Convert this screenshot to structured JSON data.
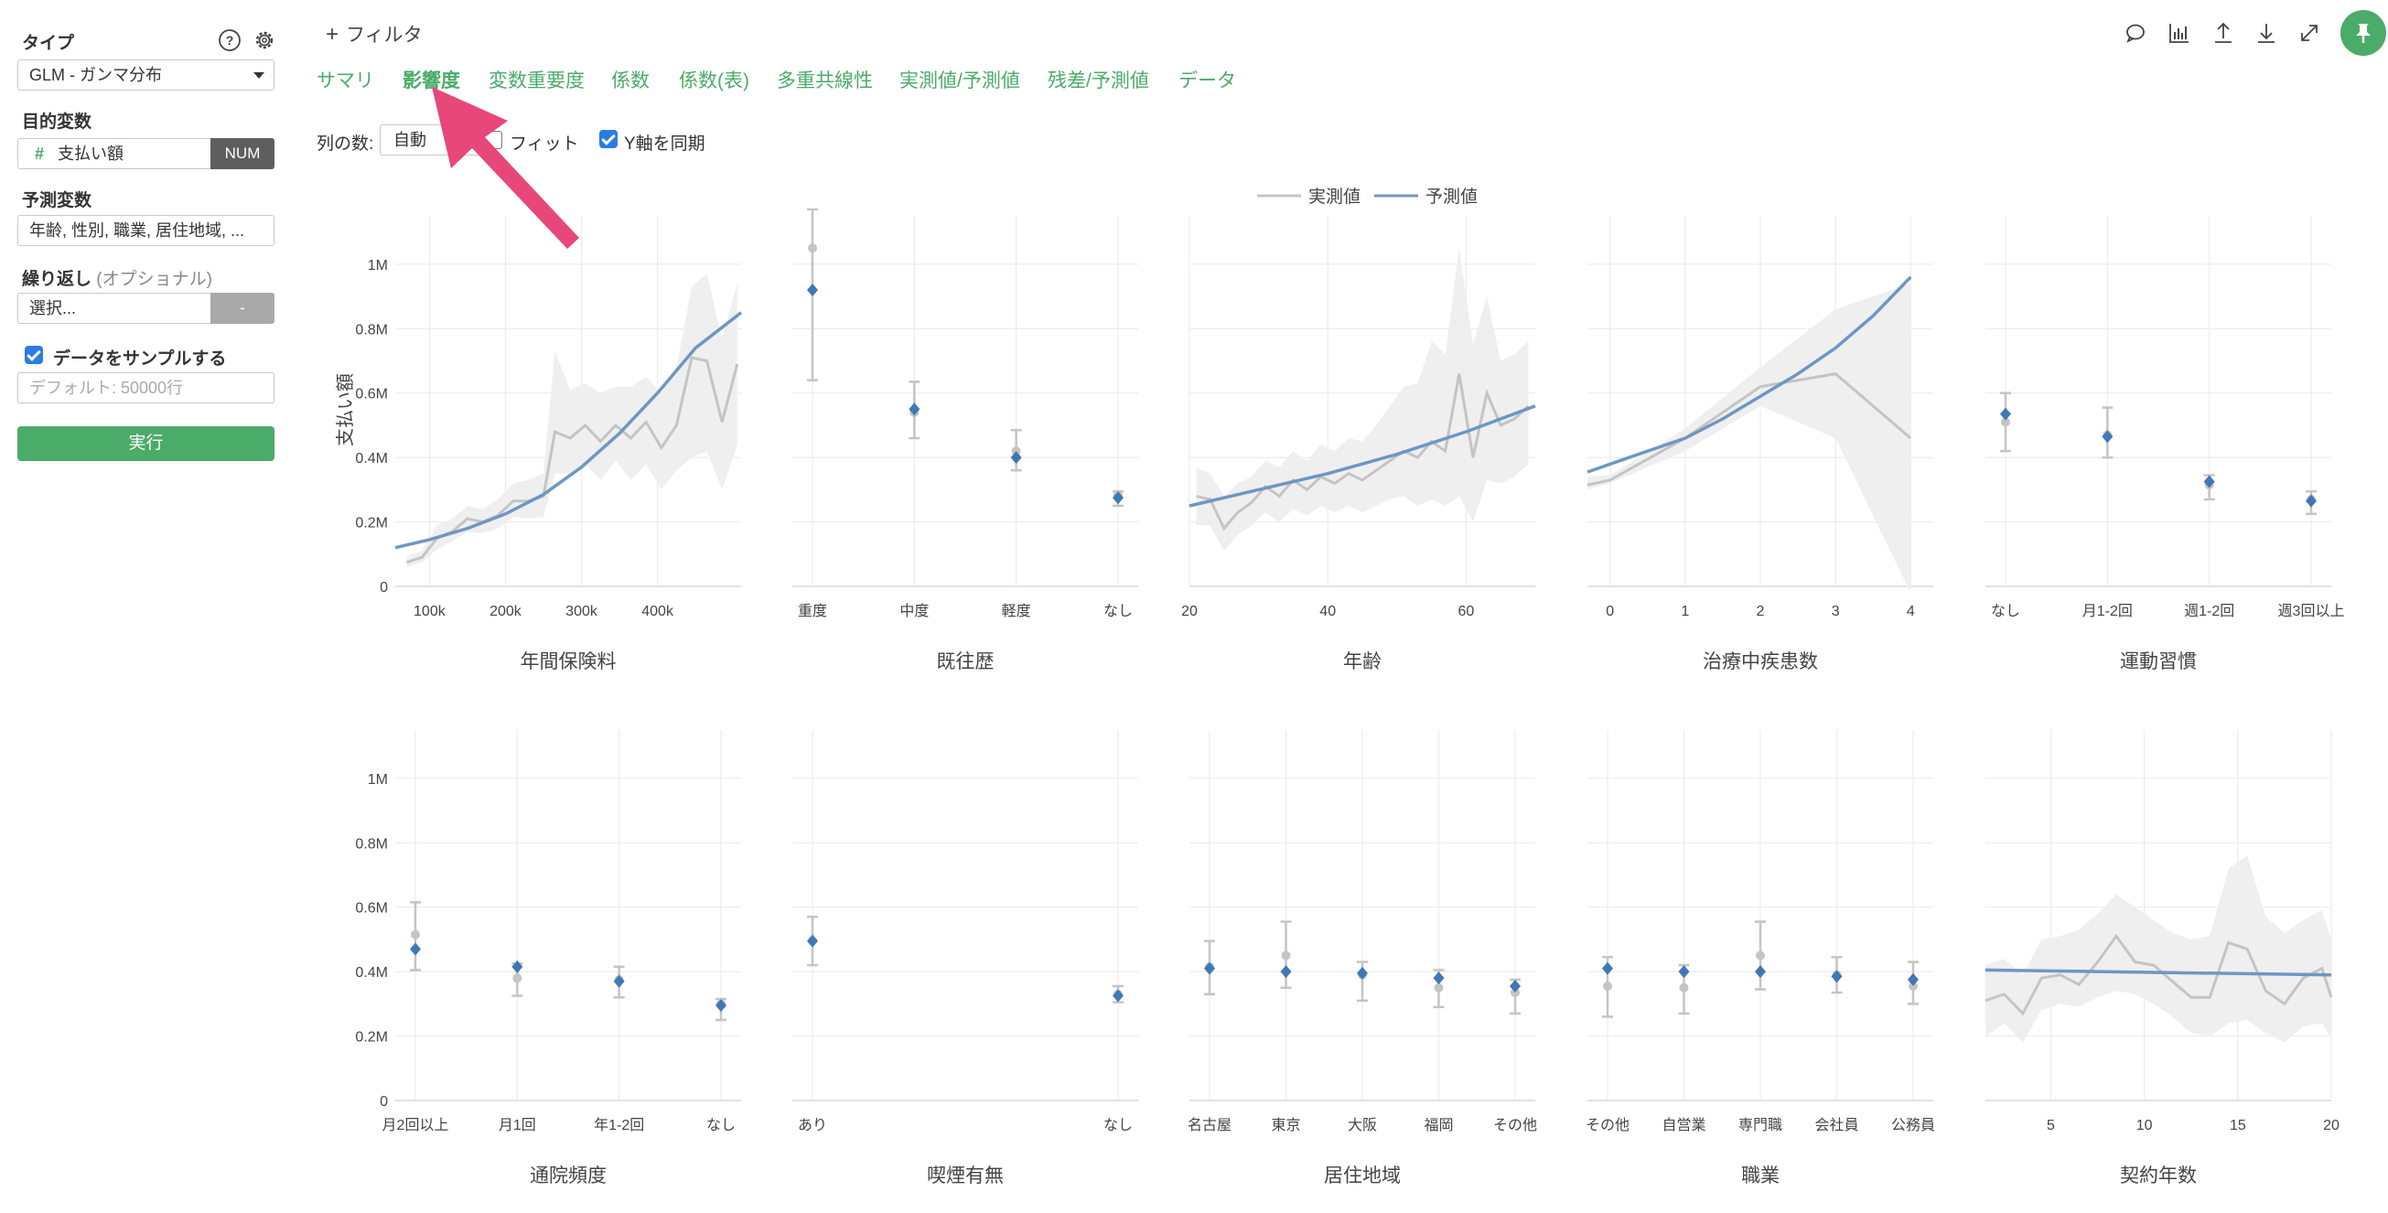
{
  "sidebar": {
    "type_label": "タイプ",
    "type_value": "GLM - ガンマ分布",
    "target_label": "目的変数",
    "target_value": "支払い額",
    "target_badge": "NUM",
    "predictor_label": "予測変数",
    "predictor_value": "年齢, 性別, 職業, 居住地域, ...",
    "repeat_label": "繰り返し",
    "repeat_optional": "(オプショナル)",
    "repeat_value": "選択...",
    "repeat_button": "-",
    "sample_label": "データをサンプルする",
    "sample_placeholder": "デフォルト: 50000行",
    "run_button": "実行"
  },
  "header": {
    "filter_label": "フィルタ",
    "tabs": [
      "サマリ",
      "影響度",
      "変数重要度",
      "係数",
      "係数(表)",
      "多重共線性",
      "実測値/予測値",
      "残差/予測値",
      "データ"
    ],
    "active_tab": "影響度"
  },
  "controls": {
    "columns_label": "列の数:",
    "columns_value": "自動",
    "fit_label": "フィット",
    "sync_y_label": "Y軸を同期"
  },
  "colors": {
    "accent": "#4bab69",
    "predicted": "#6f96c4",
    "actual": "#c4c4c4",
    "band": "#efefef",
    "arrow": "#e8477a",
    "checkbox": "#2a7be4"
  },
  "chart_data": {
    "type": "line",
    "legend": {
      "position": "top-center",
      "actual": "実測値",
      "predicted": "予測値"
    },
    "ylabel": "支払い額",
    "ylim": [
      0,
      1150000
    ],
    "yticks": [
      0,
      200000,
      400000,
      600000,
      800000,
      1000000
    ],
    "ytick_labels": [
      "0",
      "0.2M",
      "0.4M",
      "0.6M",
      "0.8M",
      "1M"
    ],
    "panels": [
      {
        "title": "年間保険料",
        "kind": "numeric",
        "xlim": [
          55000,
          510000
        ],
        "xticks": [
          100000,
          200000,
          300000,
          400000
        ],
        "xtick_labels": [
          "100k",
          "200k",
          "300k",
          "400k"
        ],
        "predicted": [
          [
            55000,
            120000
          ],
          [
            100000,
            145000
          ],
          [
            150000,
            180000
          ],
          [
            200000,
            225000
          ],
          [
            250000,
            285000
          ],
          [
            300000,
            370000
          ],
          [
            350000,
            475000
          ],
          [
            400000,
            600000
          ],
          [
            450000,
            740000
          ],
          [
            510000,
            850000
          ]
        ],
        "actual": [
          [
            70000,
            75000
          ],
          [
            90000,
            90000
          ],
          [
            110000,
            150000
          ],
          [
            130000,
            170000
          ],
          [
            150000,
            210000
          ],
          [
            170000,
            200000
          ],
          [
            190000,
            220000
          ],
          [
            210000,
            265000
          ],
          [
            230000,
            265000
          ],
          [
            250000,
            280000
          ],
          [
            265000,
            480000
          ],
          [
            285000,
            460000
          ],
          [
            305000,
            500000
          ],
          [
            325000,
            450000
          ],
          [
            345000,
            500000
          ],
          [
            365000,
            460000
          ],
          [
            385000,
            510000
          ],
          [
            405000,
            430000
          ],
          [
            425000,
            500000
          ],
          [
            445000,
            710000
          ],
          [
            465000,
            700000
          ],
          [
            485000,
            510000
          ],
          [
            505000,
            690000
          ]
        ],
        "band": [
          [
            70000,
            60000,
            95000
          ],
          [
            90000,
            75000,
            110000
          ],
          [
            110000,
            115000,
            190000
          ],
          [
            130000,
            140000,
            210000
          ],
          [
            150000,
            170000,
            250000
          ],
          [
            170000,
            165000,
            240000
          ],
          [
            190000,
            180000,
            270000
          ],
          [
            210000,
            215000,
            320000
          ],
          [
            230000,
            210000,
            330000
          ],
          [
            250000,
            215000,
            350000
          ],
          [
            265000,
            350000,
            730000
          ],
          [
            285000,
            350000,
            610000
          ],
          [
            305000,
            380000,
            630000
          ],
          [
            325000,
            330000,
            600000
          ],
          [
            345000,
            390000,
            620000
          ],
          [
            365000,
            330000,
            620000
          ],
          [
            385000,
            380000,
            650000
          ],
          [
            405000,
            300000,
            600000
          ],
          [
            425000,
            360000,
            680000
          ],
          [
            445000,
            400000,
            930000
          ],
          [
            465000,
            420000,
            970000
          ],
          [
            485000,
            300000,
            770000
          ],
          [
            505000,
            440000,
            940000
          ]
        ]
      },
      {
        "title": "既往歴",
        "kind": "categorical",
        "categories": [
          "重度",
          "中度",
          "軽度",
          "なし"
        ],
        "predicted": [
          920000,
          550000,
          400000,
          275000
        ],
        "actual": [
          1050000,
          540000,
          420000,
          285000
        ],
        "low": [
          640000,
          460000,
          360000,
          250000
        ],
        "high": [
          1170000,
          635000,
          485000,
          295000
        ]
      },
      {
        "title": "年齢",
        "kind": "numeric",
        "xlim": [
          20,
          70
        ],
        "xticks": [
          20,
          40,
          60
        ],
        "xtick_labels": [
          "20",
          "40",
          "60"
        ],
        "predicted": [
          [
            20,
            250000
          ],
          [
            30,
            300000
          ],
          [
            40,
            350000
          ],
          [
            50,
            410000
          ],
          [
            60,
            480000
          ],
          [
            70,
            560000
          ]
        ],
        "actual": [
          [
            21,
            280000
          ],
          [
            23,
            270000
          ],
          [
            25,
            180000
          ],
          [
            27,
            230000
          ],
          [
            29,
            260000
          ],
          [
            31,
            310000
          ],
          [
            33,
            280000
          ],
          [
            35,
            330000
          ],
          [
            37,
            300000
          ],
          [
            39,
            340000
          ],
          [
            41,
            320000
          ],
          [
            43,
            350000
          ],
          [
            45,
            330000
          ],
          [
            47,
            360000
          ],
          [
            49,
            390000
          ],
          [
            51,
            420000
          ],
          [
            53,
            400000
          ],
          [
            55,
            450000
          ],
          [
            57,
            420000
          ],
          [
            59,
            660000
          ],
          [
            61,
            400000
          ],
          [
            63,
            600000
          ],
          [
            65,
            500000
          ],
          [
            67,
            520000
          ],
          [
            69,
            560000
          ]
        ],
        "band": [
          [
            21,
            190000,
            370000
          ],
          [
            23,
            190000,
            350000
          ],
          [
            25,
            110000,
            280000
          ],
          [
            27,
            160000,
            320000
          ],
          [
            29,
            190000,
            340000
          ],
          [
            31,
            230000,
            390000
          ],
          [
            33,
            200000,
            370000
          ],
          [
            35,
            240000,
            420000
          ],
          [
            37,
            220000,
            390000
          ],
          [
            39,
            250000,
            440000
          ],
          [
            41,
            230000,
            420000
          ],
          [
            43,
            250000,
            460000
          ],
          [
            45,
            230000,
            450000
          ],
          [
            47,
            250000,
            500000
          ],
          [
            49,
            270000,
            560000
          ],
          [
            51,
            280000,
            620000
          ],
          [
            53,
            250000,
            630000
          ],
          [
            55,
            270000,
            760000
          ],
          [
            57,
            250000,
            720000
          ],
          [
            59,
            280000,
            1050000
          ],
          [
            61,
            200000,
            750000
          ],
          [
            63,
            330000,
            900000
          ],
          [
            65,
            320000,
            700000
          ],
          [
            67,
            340000,
            720000
          ],
          [
            69,
            380000,
            760000
          ]
        ]
      },
      {
        "title": "治療中疾患数",
        "kind": "numeric",
        "xlim": [
          -0.3,
          4.3
        ],
        "xticks": [
          0,
          1,
          2,
          3,
          4
        ],
        "xtick_labels": [
          "0",
          "1",
          "2",
          "3",
          "4"
        ],
        "predicted": [
          [
            -0.3,
            355000
          ],
          [
            0.5,
            420000
          ],
          [
            1,
            460000
          ],
          [
            1.5,
            520000
          ],
          [
            2,
            590000
          ],
          [
            2.5,
            660000
          ],
          [
            3,
            740000
          ],
          [
            3.5,
            840000
          ],
          [
            4,
            960000
          ]
        ],
        "actual": [
          [
            -0.3,
            315000
          ],
          [
            0,
            330000
          ],
          [
            1,
            460000
          ],
          [
            2,
            620000
          ],
          [
            3,
            660000
          ],
          [
            4,
            460000
          ]
        ],
        "band": [
          [
            -0.3,
            300000,
            340000
          ],
          [
            0,
            320000,
            345000
          ],
          [
            1,
            420000,
            490000
          ],
          [
            2,
            560000,
            680000
          ],
          [
            3,
            460000,
            860000
          ],
          [
            4,
            -20000,
            940000
          ]
        ]
      },
      {
        "title": "運動習慣",
        "kind": "categorical",
        "categories": [
          "なし",
          "月1-2回",
          "週1-2回",
          "週3回以上"
        ],
        "predicted": [
          535000,
          465000,
          325000,
          265000
        ],
        "actual": [
          510000,
          470000,
          315000,
          270000
        ],
        "low": [
          420000,
          400000,
          270000,
          225000
        ],
        "high": [
          600000,
          555000,
          345000,
          295000
        ]
      },
      {
        "title": "通院頻度",
        "kind": "categorical",
        "categories": [
          "月2回以上",
          "月1回",
          "年1-2回",
          "なし"
        ],
        "predicted": [
          470000,
          415000,
          370000,
          295000
        ],
        "actual": [
          515000,
          380000,
          375000,
          300000
        ],
        "low": [
          405000,
          325000,
          320000,
          250000
        ],
        "high": [
          615000,
          425000,
          415000,
          315000
        ]
      },
      {
        "title": "喫煙有無",
        "kind": "categorical",
        "categories": [
          "あり",
          "なし"
        ],
        "predicted": [
          495000,
          325000
        ],
        "actual": [
          495000,
          330000
        ],
        "low": [
          420000,
          305000
        ],
        "high": [
          570000,
          355000
        ]
      },
      {
        "title": "居住地域",
        "kind": "categorical",
        "categories": [
          "名古屋",
          "東京",
          "大阪",
          "福岡",
          "その他"
        ],
        "predicted": [
          410000,
          400000,
          395000,
          380000,
          355000
        ],
        "actual": [
          415000,
          450000,
          390000,
          350000,
          335000
        ],
        "low": [
          330000,
          350000,
          310000,
          290000,
          270000
        ],
        "high": [
          495000,
          555000,
          430000,
          405000,
          375000
        ]
      },
      {
        "title": "職業",
        "kind": "categorical",
        "categories": [
          "その他",
          "自営業",
          "専門職",
          "会社員",
          "公務員"
        ],
        "predicted": [
          410000,
          400000,
          400000,
          385000,
          375000
        ],
        "actual": [
          355000,
          350000,
          450000,
          390000,
          355000
        ],
        "low": [
          260000,
          270000,
          345000,
          335000,
          300000
        ],
        "high": [
          445000,
          420000,
          555000,
          445000,
          430000
        ]
      },
      {
        "title": "契約年数",
        "kind": "numeric",
        "xlim": [
          1.5,
          20
        ],
        "xticks": [
          5,
          10,
          15,
          20
        ],
        "xtick_labels": [
          "5",
          "10",
          "15",
          "20"
        ],
        "predicted": [
          [
            1.5,
            405000
          ],
          [
            20,
            390000
          ]
        ],
        "actual": [
          [
            1.5,
            310000
          ],
          [
            2.5,
            330000
          ],
          [
            3.5,
            270000
          ],
          [
            4.5,
            380000
          ],
          [
            5.5,
            390000
          ],
          [
            6.5,
            360000
          ],
          [
            7.5,
            430000
          ],
          [
            8.5,
            510000
          ],
          [
            9.5,
            430000
          ],
          [
            10.5,
            420000
          ],
          [
            11.5,
            370000
          ],
          [
            12.5,
            320000
          ],
          [
            13.5,
            320000
          ],
          [
            14.5,
            490000
          ],
          [
            15.5,
            470000
          ],
          [
            16.5,
            340000
          ],
          [
            17.5,
            300000
          ],
          [
            18.5,
            380000
          ],
          [
            19.5,
            410000
          ],
          [
            20,
            320000
          ]
        ],
        "band": [
          [
            1.5,
            200000,
            420000
          ],
          [
            2.5,
            240000,
            440000
          ],
          [
            3.5,
            180000,
            390000
          ],
          [
            4.5,
            280000,
            500000
          ],
          [
            5.5,
            300000,
            510000
          ],
          [
            6.5,
            290000,
            530000
          ],
          [
            7.5,
            320000,
            580000
          ],
          [
            8.5,
            340000,
            640000
          ],
          [
            9.5,
            330000,
            600000
          ],
          [
            10.5,
            300000,
            560000
          ],
          [
            11.5,
            260000,
            520000
          ],
          [
            12.5,
            210000,
            500000
          ],
          [
            13.5,
            200000,
            510000
          ],
          [
            14.5,
            240000,
            720000
          ],
          [
            15.5,
            250000,
            760000
          ],
          [
            16.5,
            210000,
            570000
          ],
          [
            17.5,
            180000,
            520000
          ],
          [
            18.5,
            230000,
            560000
          ],
          [
            19.5,
            240000,
            590000
          ],
          [
            20,
            190000,
            500000
          ]
        ]
      }
    ]
  }
}
